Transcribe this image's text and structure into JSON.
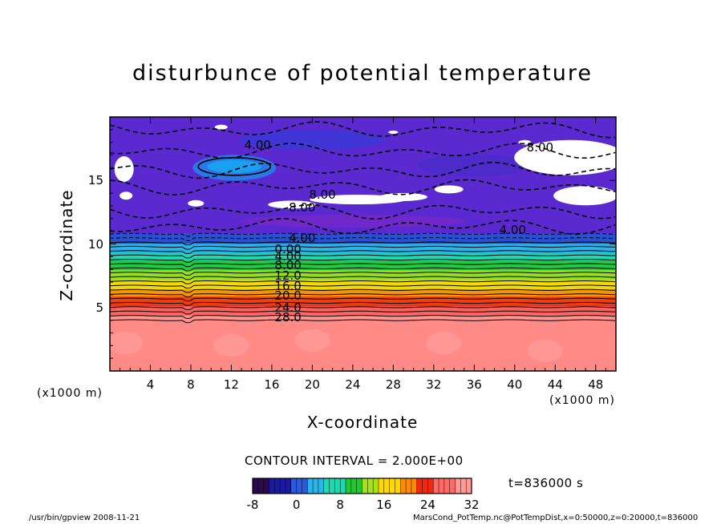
{
  "chart_data": {
    "type": "heatmap",
    "title": "disturbunce of potential temperature",
    "xlabel": "X-coordinate",
    "ylabel": "Z-coordinate",
    "x_unit_left": "(x1000 m)",
    "x_unit_right": "(x1000 m)",
    "xlim": [
      0,
      50
    ],
    "ylim": [
      0,
      20
    ],
    "x_ticks": [
      "4",
      "8",
      "12",
      "16",
      "20",
      "24",
      "28",
      "32",
      "36",
      "40",
      "44",
      "48"
    ],
    "y_ticks": [
      "5",
      "10",
      "15"
    ],
    "contour_interval": "CONTOUR INTERVAL = 2.000E+00",
    "time_label": "t=836000 s",
    "colorbar": {
      "range": [
        -8,
        32
      ],
      "tick_labels": [
        "-8",
        "0",
        "8",
        "16",
        "24",
        "32"
      ],
      "colors": [
        "#2a0a4a",
        "#1a1aa0",
        "#2a5ad8",
        "#2bb4e8",
        "#1fd8b0",
        "#22c832",
        "#a8e01e",
        "#ffd800",
        "#ff8a00",
        "#f02810",
        "#ff6a66",
        "#ff9a96"
      ]
    },
    "contour_labels": [
      "4.00",
      "8.00",
      "8.00",
      "8.00",
      "4.00",
      "4.00",
      "0.00",
      "4.00",
      "8.00",
      "12.0",
      "16.0",
      "20.0",
      "24.0",
      "28.0"
    ],
    "layers": [
      {
        "z_top": 10.8,
        "value": -2
      },
      {
        "z_top": 10.0,
        "value": 2
      },
      {
        "z_top": 9.0,
        "value": 6
      },
      {
        "z_top": 8.0,
        "value": 10
      },
      {
        "z_top": 7.0,
        "value": 14
      },
      {
        "z_top": 6.0,
        "value": 18
      },
      {
        "z_top": 5.2,
        "value": 22
      },
      {
        "z_top": 4.5,
        "value": 26
      },
      {
        "z_top": 4.0,
        "value": 30
      }
    ]
  },
  "footer": {
    "left": "/usr/bin/gpview  2008-11-21",
    "right": "MarsCond_PotTemp.nc@PotTempDist,x=0:50000,z=0:20000,t=836000"
  }
}
